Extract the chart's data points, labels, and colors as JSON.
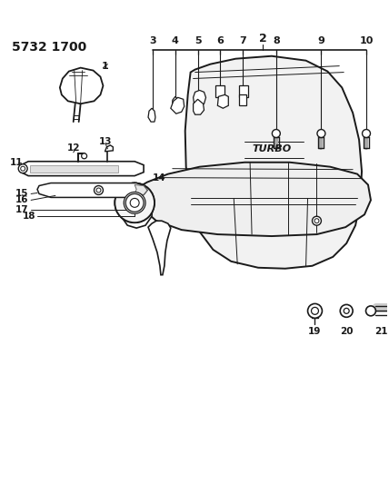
{
  "title": "5732 1700",
  "bg_color": "#ffffff",
  "line_color": "#1a1a1a",
  "fig_width": 4.28,
  "fig_height": 5.33,
  "dpi": 100
}
